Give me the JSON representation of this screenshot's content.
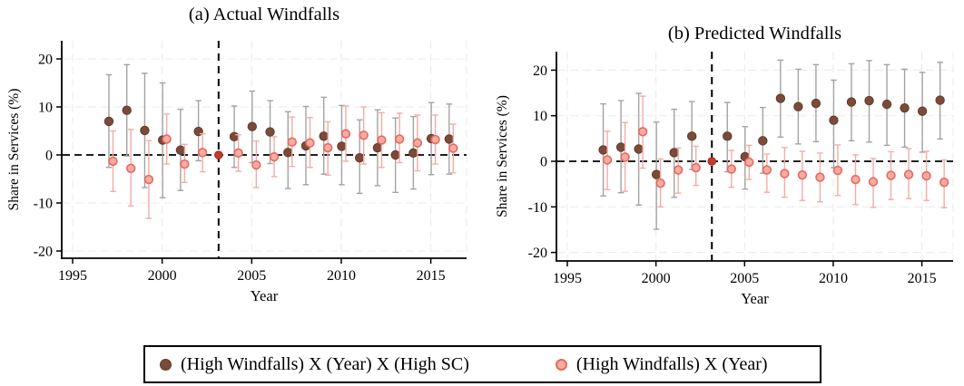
{
  "figure": {
    "colors": {
      "brown_fill": "#7b4b39",
      "brown_edge": "#623a2b",
      "ci_gray": "#a3a3a3",
      "pink_fill": "#f8aba3",
      "pink_edge": "#e56a5f",
      "ci_pink": "#f3aca6",
      "ref_dot": "#c63a2d",
      "ref_dot_edge": "#9c2b21",
      "grid": "#ece9e8",
      "axis": "#000000"
    }
  },
  "legend": {
    "items": [
      {
        "label": "(High Windfalls) X (Year) X (High SC)",
        "series": "triple-interaction",
        "marker": "brown-filled-circle"
      },
      {
        "label": "(High Windfalls) X (Year)",
        "series": "double-interaction",
        "marker": "pink-open-circle"
      }
    ]
  },
  "chart_data": [
    {
      "type": "scatter",
      "title": "(a) Actual Windfalls",
      "xlabel": "Year",
      "ylabel": "Share in Services (%)",
      "xlim": [
        1994,
        2017
      ],
      "ylim": [
        -20,
        20
      ],
      "x_ticks": [
        1995,
        2000,
        2005,
        2010,
        2015
      ],
      "y_ticks": [
        -20,
        -10,
        0,
        10,
        20
      ],
      "grid": true,
      "legend_position": "bottom",
      "reference_year": 2003,
      "zero_line": true,
      "x": [
        1997,
        1998,
        1999,
        2000,
        2001,
        2002,
        2003,
        2004,
        2005,
        2006,
        2007,
        2008,
        2009,
        2010,
        2011,
        2012,
        2013,
        2014,
        2015,
        2016
      ],
      "series": [
        {
          "name": "(High Windfalls) X (Year) X (High SC)",
          "values": [
            7.0,
            9.3,
            5.1,
            3.1,
            1.0,
            4.9,
            0,
            3.8,
            5.9,
            4.8,
            0.5,
            1.9,
            3.9,
            1.8,
            -0.6,
            1.5,
            0.0,
            0.4,
            3.4,
            3.3
          ],
          "ci_low": [
            -2.6,
            -0.2,
            -6.8,
            -8.9,
            -7.4,
            -1.2,
            0,
            -2.6,
            -1.6,
            -1.8,
            -7.0,
            -6.2,
            -4.0,
            -6.2,
            -8.0,
            -6.4,
            -7.8,
            -7.1,
            -4.1,
            -4.0
          ],
          "ci_high": [
            16.7,
            18.8,
            17.0,
            15.0,
            9.5,
            11.3,
            0,
            10.2,
            13.3,
            11.3,
            9.0,
            10.1,
            12.0,
            10.3,
            7.3,
            9.4,
            7.7,
            8.0,
            10.9,
            10.6
          ]
        },
        {
          "name": "(High Windfalls) X (Year)",
          "values": [
            -1.3,
            -2.8,
            -5.1,
            3.3,
            -1.9,
            0.5,
            0,
            0.4,
            -2.1,
            -0.4,
            2.7,
            2.5,
            1.5,
            4.4,
            4.1,
            3.1,
            3.3,
            2.5,
            3.2,
            1.4
          ],
          "ci_low": [
            -7.6,
            -10.6,
            -13.2,
            -1.9,
            -5.7,
            -3.5,
            0,
            -3.4,
            -6.8,
            -4.5,
            -2.4,
            -2.6,
            -4.2,
            -1.3,
            -1.9,
            -2.6,
            -1.6,
            -3.3,
            -1.9,
            -3.7
          ],
          "ci_high": [
            5.0,
            5.3,
            3.0,
            8.5,
            2.2,
            4.4,
            0,
            4.2,
            2.9,
            3.8,
            7.9,
            7.8,
            6.9,
            10.2,
            10.0,
            8.8,
            8.7,
            8.3,
            8.3,
            6.4
          ]
        }
      ]
    },
    {
      "type": "scatter",
      "title": "(b) Predicted Windfalls",
      "xlabel": "Year",
      "ylabel": "Share in Services (%)",
      "xlim": [
        1994,
        2017
      ],
      "ylim": [
        -20,
        20
      ],
      "x_ticks": [
        1995,
        2000,
        2005,
        2010,
        2015
      ],
      "y_ticks": [
        -20,
        -10,
        0,
        10,
        20
      ],
      "grid": true,
      "legend_position": "bottom",
      "reference_year": 2003,
      "zero_line": true,
      "x": [
        1997,
        1998,
        1999,
        2000,
        2001,
        2002,
        2003,
        2004,
        2005,
        2006,
        2007,
        2008,
        2009,
        2010,
        2011,
        2012,
        2013,
        2014,
        2015,
        2016
      ],
      "series": [
        {
          "name": "(High Windfalls) X (Year) X (High SC)",
          "values": [
            2.5,
            3.1,
            2.7,
            -2.9,
            1.9,
            5.5,
            0,
            5.5,
            1.0,
            4.5,
            13.8,
            12.0,
            12.7,
            9.0,
            13.0,
            13.3,
            12.5,
            11.7,
            11.0,
            13.4
          ],
          "ci_low": [
            -7.6,
            -6.9,
            -9.6,
            -14.9,
            -7.9,
            -1.8,
            0,
            -2.3,
            -6.1,
            -2.6,
            5.3,
            3.8,
            4.3,
            -1.4,
            4.5,
            4.2,
            3.5,
            3.1,
            2.0,
            4.9
          ],
          "ci_high": [
            12.6,
            13.3,
            14.9,
            8.6,
            11.4,
            13.1,
            0,
            12.9,
            7.6,
            11.8,
            22.2,
            20.2,
            21.2,
            17.8,
            21.4,
            22.1,
            21.2,
            20.2,
            19.5,
            21.7
          ]
        },
        {
          "name": "(High Windfalls) X (Year)",
          "values": [
            0.3,
            0.9,
            6.5,
            -4.8,
            -1.9,
            -1.4,
            0,
            -1.7,
            -0.2,
            -1.9,
            -2.7,
            -3.0,
            -3.5,
            -2.0,
            -4.0,
            -4.5,
            -3.1,
            -2.9,
            -3.2,
            -4.6
          ],
          "ci_low": [
            -6.2,
            -6.6,
            -1.5,
            -10.0,
            -7.0,
            -5.3,
            0,
            -5.7,
            -4.0,
            -6.8,
            -7.9,
            -8.6,
            -8.9,
            -7.5,
            -9.5,
            -10.1,
            -8.4,
            -8.2,
            -8.6,
            -10.2
          ],
          "ci_high": [
            6.6,
            8.5,
            14.3,
            0.5,
            2.9,
            3.3,
            0,
            2.4,
            3.5,
            1.6,
            3.0,
            2.2,
            1.8,
            3.6,
            1.4,
            0.6,
            2.1,
            2.8,
            2.2,
            0.3
          ]
        }
      ]
    }
  ]
}
